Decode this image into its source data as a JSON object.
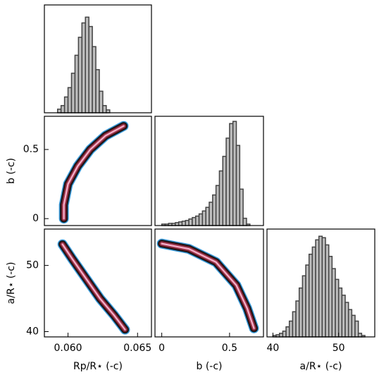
{
  "chart_data": [
    {
      "type": "histogram",
      "bins": [
        0.05925,
        0.0595,
        0.05975,
        0.06,
        0.06025,
        0.0605,
        0.06075,
        0.061,
        0.06125,
        0.0615,
        0.06175,
        0.062,
        0.06225,
        0.0625,
        0.06275,
        0.063
      ],
      "counts": [
        5,
        10,
        22,
        35,
        55,
        80,
        105,
        125,
        133,
        120,
        92,
        60,
        30,
        10,
        4
      ],
      "xlim": [
        0.0583,
        0.066
      ],
      "ylim": [
        0,
        150
      ],
      "color": "#bdbdbd"
    },
    {
      "type": "density",
      "x": [
        0.0597,
        0.0597,
        0.06,
        0.0607,
        0.0616,
        0.0627,
        0.064
      ],
      "y": [
        0.0,
        0.1,
        0.25,
        0.38,
        0.5,
        0.6,
        0.67
      ],
      "xlim": [
        0.0583,
        0.066
      ],
      "ylim": [
        -0.05,
        0.74
      ],
      "yticks": [
        0,
        0.5
      ],
      "ylabel": "b (-c)"
    },
    {
      "type": "histogram",
      "bins": [
        0,
        0.025,
        0.05,
        0.075,
        0.1,
        0.125,
        0.15,
        0.175,
        0.2,
        0.225,
        0.25,
        0.275,
        0.3,
        0.325,
        0.35,
        0.375,
        0.4,
        0.425,
        0.45,
        0.475,
        0.5,
        0.525,
        0.55,
        0.575,
        0.6,
        0.625,
        0.65
      ],
      "counts": [
        2,
        2,
        3,
        3,
        4,
        5,
        6,
        7,
        9,
        11,
        13,
        16,
        20,
        25,
        32,
        42,
        55,
        75,
        95,
        120,
        140,
        143,
        110,
        50,
        10,
        2
      ],
      "xlim": [
        -0.05,
        0.75
      ],
      "ylim": [
        0,
        150
      ],
      "color": "#bdbdbd"
    },
    {
      "type": "density",
      "x": [
        0.0596,
        0.0603,
        0.0613,
        0.0623,
        0.0633,
        0.0641
      ],
      "y": [
        53.2,
        51,
        48,
        45,
        42.5,
        40.3
      ],
      "xlim": [
        0.0583,
        0.066
      ],
      "ylim": [
        39.2,
        55.5
      ],
      "xticks": [
        {
          "value": 0.06,
          "label": "0.060"
        },
        {
          "value": 0.065,
          "label": "0.065"
        }
      ],
      "yticks": [
        40,
        50
      ],
      "xlabel": "Rp/R⋆ (-c)",
      "ylabel": "a/R⋆ (-c)"
    },
    {
      "type": "density",
      "x": [
        0,
        0.2,
        0.4,
        0.55,
        0.63,
        0.68
      ],
      "y": [
        53.3,
        52.5,
        50.5,
        47,
        43.5,
        40.5
      ],
      "xlim": [
        -0.05,
        0.75
      ],
      "ylim": [
        39.2,
        55.5
      ],
      "xticks": [
        0,
        0.5
      ],
      "xlabel": "b (-c)"
    },
    {
      "type": "histogram",
      "bins": [
        40,
        40.5,
        41,
        41.5,
        42,
        42.5,
        43,
        43.5,
        44,
        44.5,
        45,
        45.5,
        46,
        46.5,
        47,
        47.5,
        48,
        48.5,
        49,
        49.5,
        50,
        50.5,
        51,
        51.5,
        52,
        52.5,
        53,
        53.5,
        54
      ],
      "counts": [
        2,
        3,
        5,
        8,
        14,
        22,
        35,
        50,
        68,
        85,
        100,
        115,
        125,
        135,
        140,
        138,
        128,
        112,
        95,
        80,
        68,
        58,
        48,
        38,
        30,
        22,
        5,
        2
      ],
      "xlim": [
        39.1,
        55.5
      ],
      "ylim": [
        0,
        150
      ],
      "xticks": [
        40,
        50
      ],
      "xlabel": "a/R⋆ (-c)",
      "color": "#bdbdbd"
    }
  ]
}
